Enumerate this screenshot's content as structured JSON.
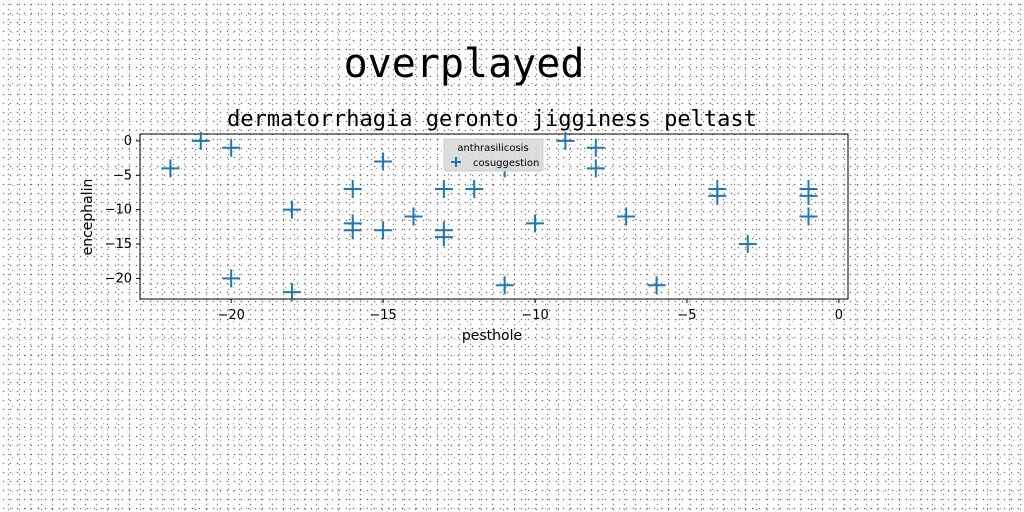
{
  "chart_data": {
    "type": "scatter",
    "suptitle": "overplayed",
    "title": "dermatorrhagia geronto jigginess peltast",
    "xlabel": "pesthole",
    "ylabel": "encephalin",
    "xlim": [
      -23,
      0.3
    ],
    "ylim": [
      -23,
      1
    ],
    "xticks": [
      -20,
      -15,
      -10,
      -5,
      0
    ],
    "yticks": [
      0,
      -5,
      -10,
      -15,
      -20
    ],
    "xtick_labels": [
      "−20",
      "−15",
      "−10",
      "−5",
      "0"
    ],
    "ytick_labels": [
      "0",
      "−5",
      "−10",
      "−15",
      "−20"
    ],
    "grid": false,
    "legend": {
      "title": "anthrasilicosis",
      "location": "upper center"
    },
    "series": [
      {
        "name": "cosuggestion",
        "color": "#1f77b4",
        "marker": "plus",
        "x": [
          -22,
          -21,
          -20,
          -20,
          -18,
          -18,
          -16,
          -16,
          -16,
          -15,
          -15,
          -14,
          -13,
          -13,
          -13,
          -12,
          -11,
          -11,
          -10,
          -9,
          -8,
          -8,
          -7,
          -6,
          -4,
          -4,
          -3,
          -1,
          -1,
          -1
        ],
        "y": [
          -4,
          0,
          -1,
          -20,
          -10,
          -22,
          -7,
          -12,
          -13,
          -3,
          -13,
          -11,
          -7,
          -13,
          -14,
          -7,
          -4,
          -21,
          -12,
          0,
          -1,
          -4,
          -11,
          -21,
          -7,
          -8,
          -15,
          -7,
          -8,
          -11
        ]
      }
    ]
  }
}
